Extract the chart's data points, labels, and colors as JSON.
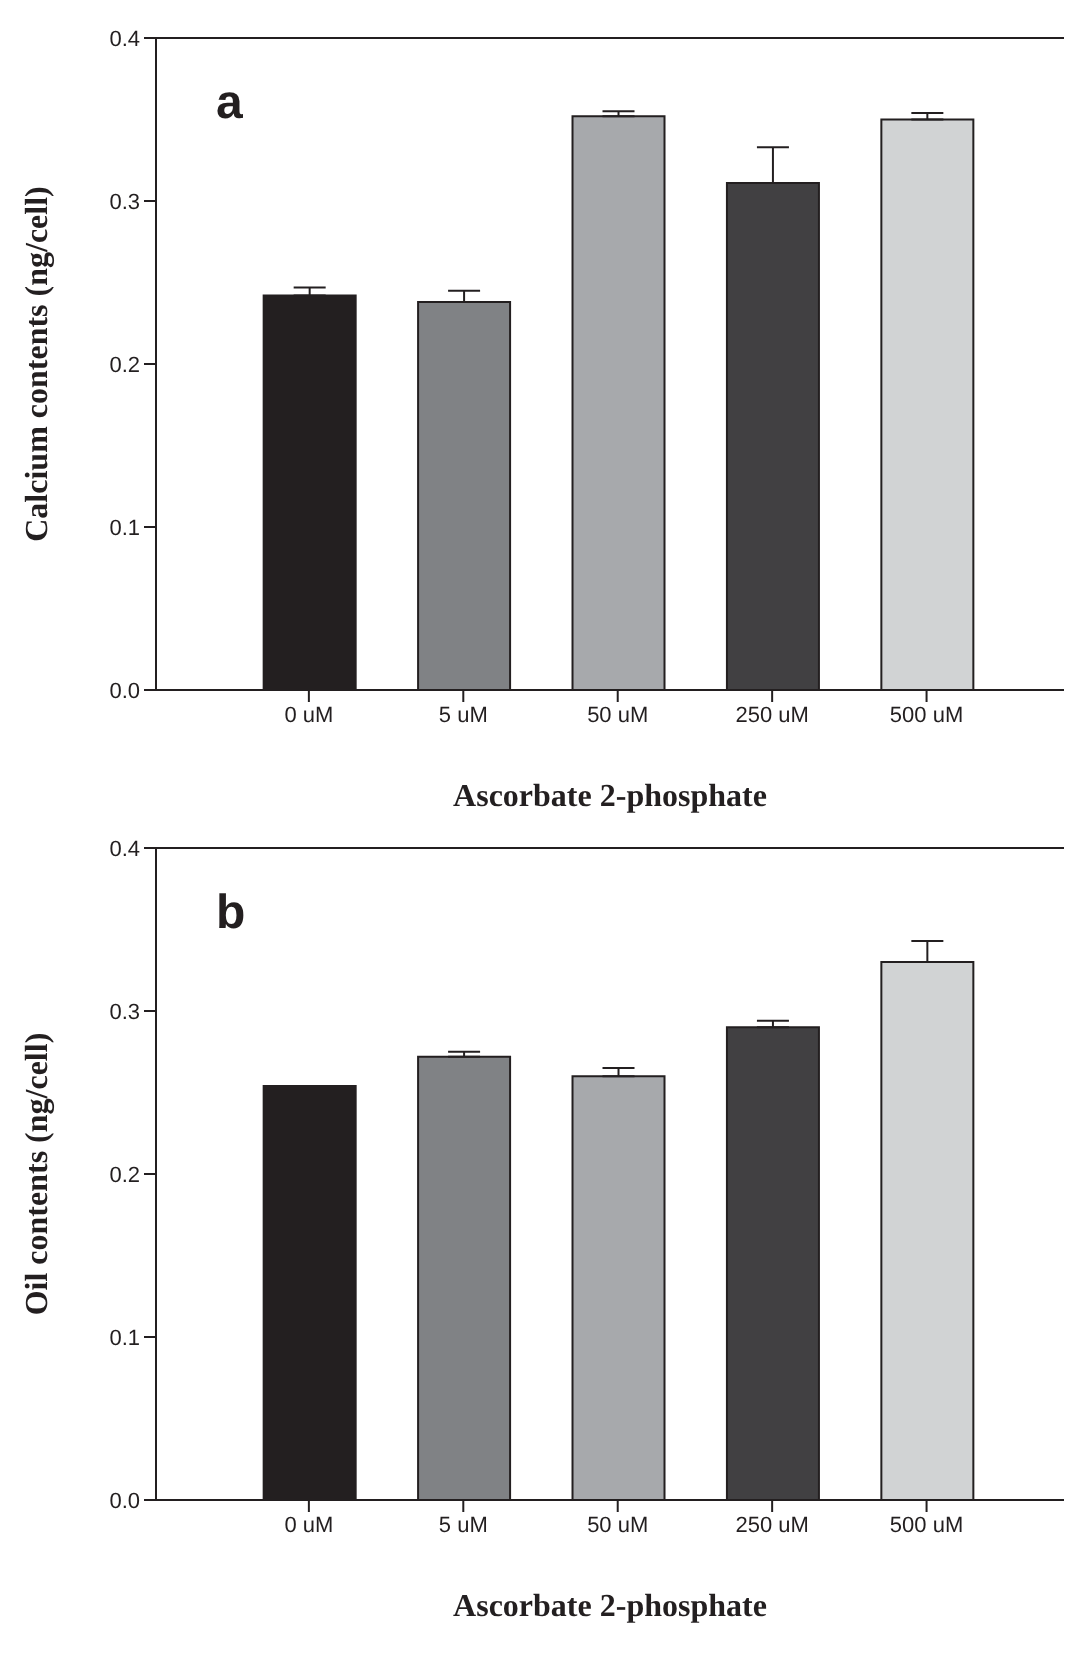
{
  "chart_data": [
    {
      "type": "bar",
      "annotations": [
        "a"
      ],
      "xlabel": "Ascorbate 2-phosphate",
      "ylabel": "Calcium contents (ng/cell)",
      "categories": [
        "0 uM",
        "5 uM",
        "50 uM",
        "250 uM",
        "500 uM"
      ],
      "values": [
        0.242,
        0.238,
        0.352,
        0.311,
        0.35
      ],
      "errors": [
        0.005,
        0.007,
        0.003,
        0.022,
        0.004
      ],
      "colors": [
        "#231f20",
        "#808285",
        "#a7a9ac",
        "#414042",
        "#d1d3d4"
      ],
      "ylim": [
        0,
        0.4
      ],
      "yticks": [
        {
          "value": 0,
          "label": "0.0"
        },
        0.1,
        0.2,
        0.3,
        0.4
      ],
      "grid": false,
      "legend": false
    },
    {
      "type": "bar",
      "annotations": [
        "b"
      ],
      "xlabel": "Ascorbate 2-phosphate",
      "ylabel": "Oil contents (ng/cell)",
      "categories": [
        "0 uM",
        "5 uM",
        "50 uM",
        "250 uM",
        "500 uM"
      ],
      "values": [
        0.254,
        0.272,
        0.26,
        0.29,
        0.33
      ],
      "errors": [
        null,
        0.003,
        0.005,
        0.004,
        0.013
      ],
      "colors": [
        "#231f20",
        "#808285",
        "#a7a9ac",
        "#414042",
        "#d1d3d4"
      ],
      "ylim": [
        0,
        0.4
      ],
      "yticks": [
        {
          "value": 0,
          "label": "0.0"
        },
        0.1,
        0.2,
        0.3,
        0.4
      ],
      "grid": false,
      "legend": false
    }
  ]
}
